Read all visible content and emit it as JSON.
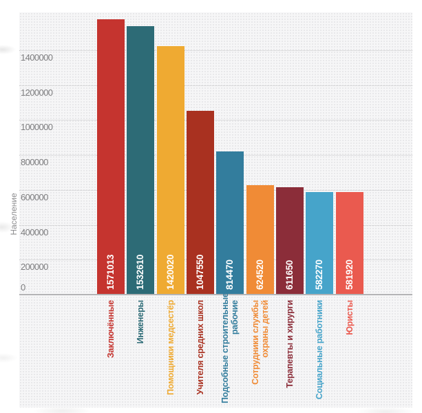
{
  "chart_data": {
    "type": "bar",
    "title": "",
    "xlabel": "",
    "ylabel": "Население",
    "categories": [
      "Заключённые",
      "Инженеры",
      "Помощники медсестёр",
      "Учителя средних школ",
      "Подсобные строительные рабочие",
      "Сотрудники службы охраны детей",
      "Терапевты и хирурги",
      "Социальные работники",
      "Юристы"
    ],
    "category_lines": [
      [
        "Заключённые"
      ],
      [
        "Инженеры"
      ],
      [
        "Помощники медсестёр"
      ],
      [
        "Учителя средних школ"
      ],
      [
        "Подсобные строительные",
        "рабочие"
      ],
      [
        "Сотрудники службы",
        "охраны детей"
      ],
      [
        "Терапевты и хирурги"
      ],
      [
        "Социальные работники"
      ],
      [
        "Юристы"
      ]
    ],
    "values": [
      1571013,
      1532610,
      1420020,
      1047550,
      814470,
      624520,
      611650,
      582270,
      581920
    ],
    "value_labels": [
      "1571013",
      "1532610",
      "1420020",
      "1047550",
      "814470",
      "624520",
      "611650",
      "582270",
      "581920"
    ],
    "bar_colors": [
      "#c5342f",
      "#2d6b76",
      "#efaa32",
      "#a93120",
      "#337d9d",
      "#f08b36",
      "#8b2d39",
      "#46a4ca",
      "#ea5a4f"
    ],
    "ylim": [
      0,
      1600000
    ],
    "yticks": [
      "0",
      "200000",
      "400000",
      "600000",
      "800000",
      "1000000",
      "1200000",
      "1400000"
    ],
    "grid": "horizontal dotted gridlines on dotted paper background",
    "legend": "none",
    "value_label_position": "inside bar bottom, rotated 90° (reads bottom-to-top), white bold",
    "category_label_position": "below axis, rotated 90° (reads bottom-to-top), colored to match bar"
  },
  "style_colors": {
    "plot_background": "#f6f6f7",
    "grid_dot": "#e3e3e5",
    "gridline": "#c3c3c5",
    "axis_line": "#b4b4b6",
    "tick_text": "#7d7d7f",
    "ylabel_text": "#8c8c8e",
    "page_background": "#ffffff"
  }
}
